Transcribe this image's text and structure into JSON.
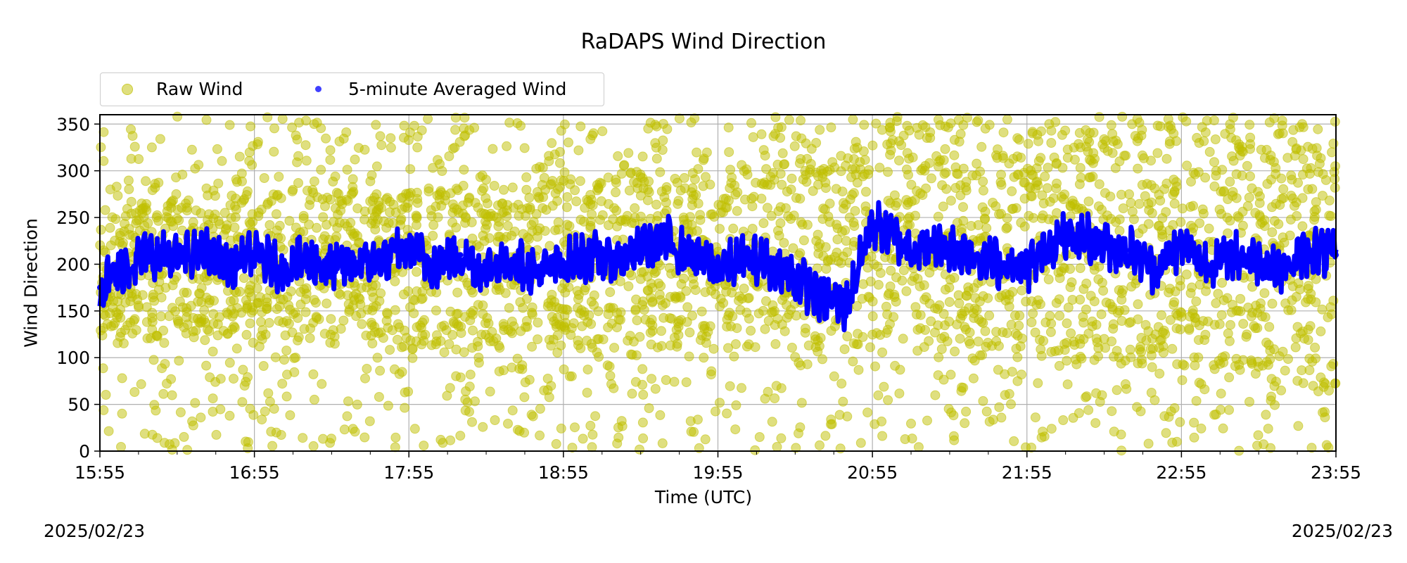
{
  "page": {
    "title": "RaDAPS Wind Direction",
    "xlabel": "Time (UTC)",
    "ylabel": "Wind Direction",
    "date_left": "2025/02/23",
    "date_right": "2025/02/23"
  },
  "legend": {
    "raw_label": "Raw Wind",
    "avg_label": "5-minute Averaged Wind"
  },
  "colors": {
    "raw": "#bfbf00",
    "avg": "#0000ff",
    "grid": "#b0b0b0"
  },
  "chart_data": {
    "type": "scatter",
    "title": "RaDAPS Wind Direction",
    "xlabel": "Time (UTC)",
    "ylabel": "Wind Direction",
    "x_ticks": [
      "15:55",
      "16:55",
      "17:55",
      "18:55",
      "19:55",
      "20:55",
      "21:55",
      "22:55",
      "23:55"
    ],
    "y_ticks": [
      0,
      50,
      100,
      150,
      200,
      250,
      300,
      350
    ],
    "xlim": [
      "15:55",
      "23:55"
    ],
    "ylim": [
      0,
      360
    ],
    "grid": true,
    "legend_position": "top-left, above plot",
    "series": [
      {
        "name": "Raw Wind",
        "marker": "circle",
        "color": "#bfbf00",
        "description": "dense scatter of raw readings spread 0-360, concentrated 100-300",
        "bands": [
          {
            "x": "15:55",
            "low": 120,
            "high": 260
          },
          {
            "x": "16:55",
            "low": 120,
            "high": 280
          },
          {
            "x": "17:55",
            "low": 110,
            "high": 280
          },
          {
            "x": "18:55",
            "low": 110,
            "high": 290
          },
          {
            "x": "19:55",
            "low": 110,
            "high": 300
          },
          {
            "x": "20:55",
            "low": 110,
            "high": 320
          },
          {
            "x": "21:55",
            "low": 100,
            "high": 320
          },
          {
            "x": "22:55",
            "low": 90,
            "high": 330
          },
          {
            "x": "23:55",
            "low": 90,
            "high": 330
          }
        ]
      },
      {
        "name": "5-minute Averaged Wind",
        "marker": "dot",
        "color": "#0000ff",
        "x": [
          "15:55",
          "16:05",
          "16:15",
          "16:25",
          "16:35",
          "16:45",
          "16:55",
          "17:05",
          "17:15",
          "17:25",
          "17:35",
          "17:45",
          "17:55",
          "18:05",
          "18:15",
          "18:25",
          "18:35",
          "18:45",
          "18:55",
          "19:05",
          "19:15",
          "19:25",
          "19:35",
          "19:45",
          "19:55",
          "20:05",
          "20:15",
          "20:25",
          "20:35",
          "20:45",
          "20:55",
          "21:05",
          "21:15",
          "21:25",
          "21:35",
          "21:45",
          "21:55",
          "22:05",
          "22:15",
          "22:25",
          "22:35",
          "22:45",
          "22:55",
          "23:05",
          "23:15",
          "23:25",
          "23:35",
          "23:45",
          "23:55"
        ],
        "y": [
          175,
          200,
          210,
          205,
          215,
          200,
          210,
          195,
          205,
          195,
          200,
          205,
          215,
          200,
          210,
          195,
          205,
          190,
          200,
          210,
          205,
          215,
          225,
          210,
          195,
          205,
          200,
          185,
          165,
          155,
          245,
          225,
          215,
          220,
          210,
          200,
          195,
          225,
          230,
          220,
          215,
          195,
          220,
          200,
          210,
          205,
          195,
          215,
          210
        ]
      }
    ]
  }
}
